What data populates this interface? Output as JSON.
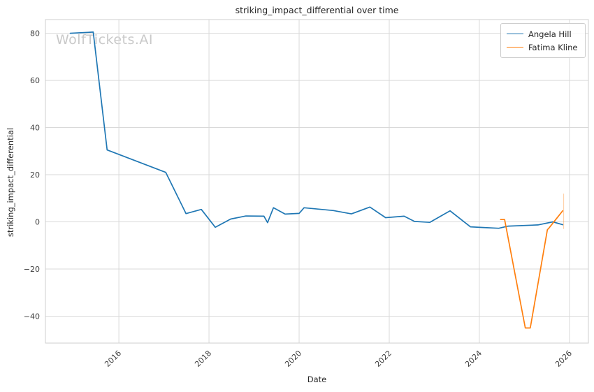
{
  "watermark": {
    "text": "WolfTickets.AI"
  },
  "chart_data": {
    "type": "line",
    "title": "striking_impact_differential over time",
    "xlabel": "Date",
    "ylabel": "striking_impact_differential",
    "xlim": [
      2014.37,
      2026.42
    ],
    "ylim": [
      -51.4,
      85.8
    ],
    "grid": true,
    "legend_position": "upper right",
    "background": "#ffffff",
    "grid_color": "#d9d9d9",
    "frame_color": "#cfcfcf",
    "tick_color": "#3d3d3d",
    "xticks": {
      "values": [
        2016,
        2018,
        2020,
        2022,
        2024,
        2026
      ],
      "labels": [
        "2016",
        "2018",
        "2020",
        "2022",
        "2024",
        "2026"
      ]
    },
    "yticks": {
      "values": [
        80,
        60,
        40,
        20,
        0,
        -20,
        -40
      ],
      "labels": [
        "80",
        "60",
        "40",
        "20",
        "0",
        "−20",
        "−40"
      ]
    },
    "series": [
      {
        "name": "Angela Hill",
        "color": "#1f77b4",
        "points": [
          [
            2014.92,
            80
          ],
          [
            2015.43,
            80.5
          ],
          [
            2015.74,
            30.5
          ],
          [
            2017.04,
            21
          ],
          [
            2017.49,
            3.5
          ],
          [
            2017.83,
            5.3
          ],
          [
            2018.14,
            -2.3
          ],
          [
            2018.48,
            1.2
          ],
          [
            2018.82,
            2.5
          ],
          [
            2019.22,
            2.4
          ],
          [
            2019.3,
            -0.3
          ],
          [
            2019.43,
            6
          ],
          [
            2019.69,
            3.3
          ],
          [
            2020.0,
            3.6
          ],
          [
            2020.11,
            6
          ],
          [
            2020.76,
            4.8
          ],
          [
            2021.16,
            3.4
          ],
          [
            2021.57,
            6.3
          ],
          [
            2021.92,
            1.8
          ],
          [
            2022.33,
            2.4
          ],
          [
            2022.56,
            0.2
          ],
          [
            2022.9,
            -0.2
          ],
          [
            2023.35,
            4.7
          ],
          [
            2023.8,
            -2.1
          ],
          [
            2024.09,
            -2.4
          ],
          [
            2024.43,
            -2.7
          ],
          [
            2024.64,
            -1.8
          ],
          [
            2025.3,
            -1.3
          ],
          [
            2025.63,
            0
          ],
          [
            2025.85,
            -1.2
          ]
        ]
      },
      {
        "name": "Fatima Kline",
        "color": "#ff7f0e",
        "points": [
          [
            2024.47,
            1
          ],
          [
            2024.56,
            1
          ],
          [
            2025.02,
            -45
          ],
          [
            2025.13,
            -45
          ],
          [
            2025.51,
            -3.3
          ],
          [
            2025.54,
            -2.7
          ],
          [
            2025.85,
            4.7
          ]
        ],
        "faded_tail": {
          "x": 2025.87,
          "y_from": -3,
          "y_to": 12,
          "opacity": 0.35
        }
      }
    ]
  }
}
